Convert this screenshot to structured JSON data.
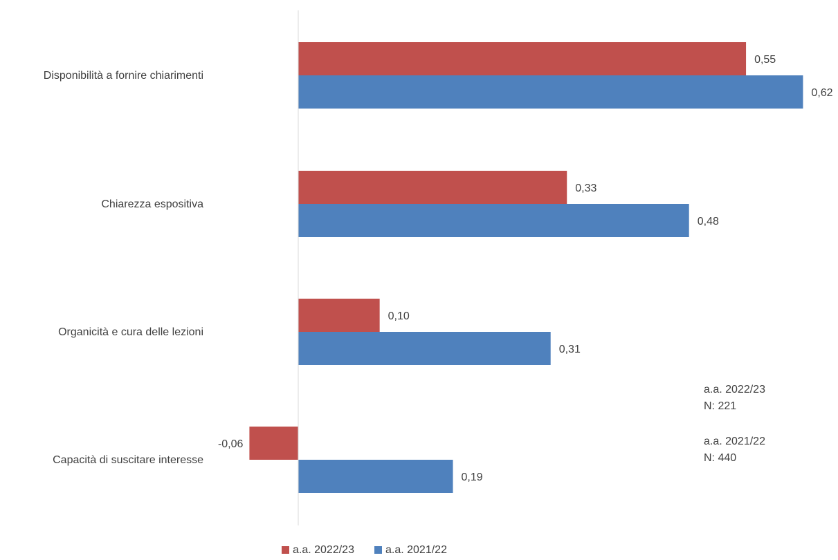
{
  "chart_data": {
    "type": "bar",
    "orientation": "horizontal",
    "categories": [
      "Disponibilità a fornire chiarimenti",
      "Chiarezza espositiva",
      "Organicità e cura delle lezioni",
      "Capacità di suscitare interesse"
    ],
    "series": [
      {
        "name": "a.a. 2022/23",
        "color": "#C0504D",
        "values": [
          0.55,
          0.33,
          0.1,
          -0.06
        ],
        "labels": [
          "0,55",
          "0,33",
          "0,10",
          "-0,06"
        ]
      },
      {
        "name": "a.a. 2021/22",
        "color": "#4F81BD",
        "values": [
          0.62,
          0.48,
          0.31,
          0.19
        ],
        "labels": [
          "0,62",
          "0,48",
          "0,31",
          "0,19"
        ]
      }
    ],
    "annotations": [
      {
        "line1": "a.a. 2022/23",
        "line2": "N: 221"
      },
      {
        "line1": "a.a. 2021/22",
        "line2": "N: 440"
      }
    ],
    "axis_color": "#D9D9D9",
    "grid": false,
    "legend_position": "bottom"
  }
}
